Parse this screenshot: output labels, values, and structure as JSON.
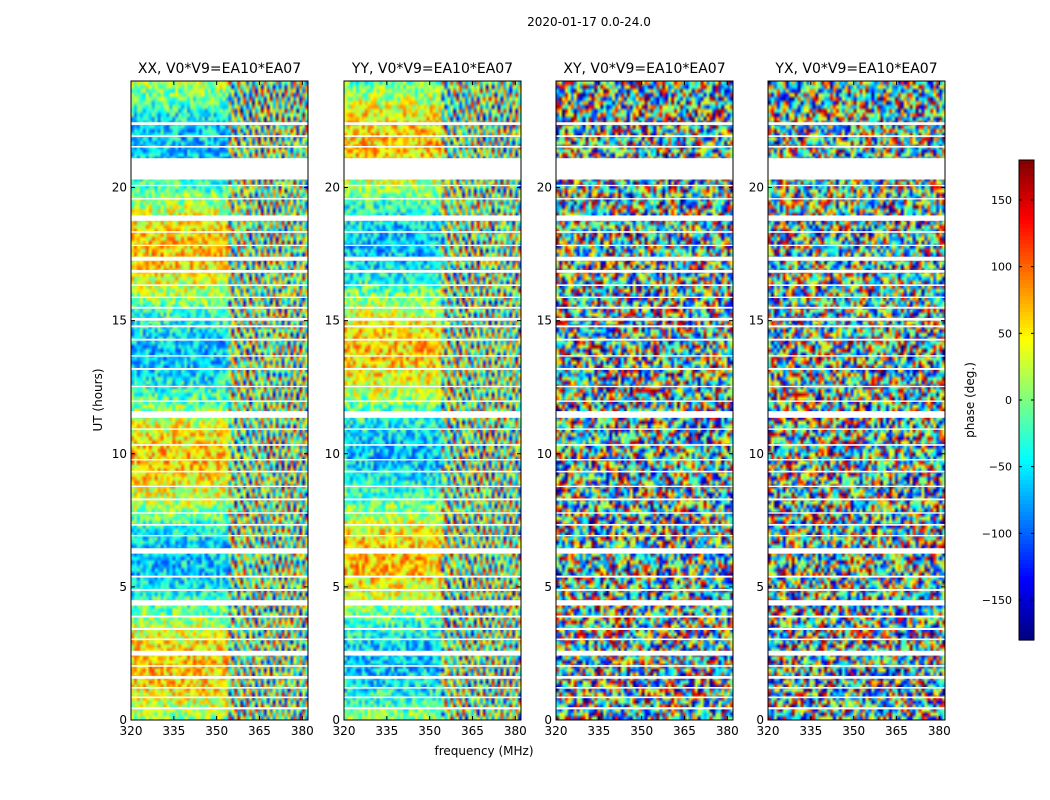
{
  "figure": {
    "suptitle": "2020-01-17 0.0-24.0",
    "xlabel": "frequency (MHz)",
    "ylabel": "UT (hours)"
  },
  "colorbar": {
    "label": "phase (deg.)",
    "range": [
      -180,
      180
    ],
    "ticks": [
      -150,
      -100,
      -50,
      0,
      50,
      100,
      150
    ],
    "tick_labels": [
      "−150",
      "−100",
      "−50",
      "0",
      "50",
      "100",
      "150"
    ],
    "colormap": "jet"
  },
  "chart_data": {
    "type": "heatmap",
    "xlim": [
      320,
      382
    ],
    "ylim": [
      0,
      24
    ],
    "xticks": [
      320,
      335,
      350,
      365,
      380
    ],
    "xtick_labels": [
      "320",
      "335",
      "350",
      "365",
      "380"
    ],
    "yticks": [
      0,
      5,
      10,
      15,
      20
    ],
    "ytick_labels": [
      "0",
      "5",
      "10",
      "15",
      "20"
    ],
    "value_range": [
      -180,
      180
    ],
    "value_label": "phase (deg.)",
    "flagged_bands_hours": [
      [
        0.4,
        0.48
      ],
      [
        0.82,
        0.88
      ],
      [
        1.18,
        1.24
      ],
      [
        1.55,
        1.65
      ],
      [
        2.0,
        2.06
      ],
      [
        2.42,
        2.6
      ],
      [
        3.0,
        3.06
      ],
      [
        3.38,
        3.46
      ],
      [
        3.85,
        3.92
      ],
      [
        4.3,
        4.5
      ],
      [
        4.85,
        4.92
      ],
      [
        5.35,
        5.42
      ],
      [
        6.25,
        6.45
      ],
      [
        6.9,
        6.95
      ],
      [
        7.3,
        7.36
      ],
      [
        7.75,
        7.8
      ],
      [
        8.25,
        8.32
      ],
      [
        8.75,
        8.8
      ],
      [
        9.3,
        9.36
      ],
      [
        9.75,
        9.8
      ],
      [
        10.3,
        10.36
      ],
      [
        10.9,
        10.95
      ],
      [
        11.35,
        11.6
      ],
      [
        11.95,
        12.0
      ],
      [
        12.5,
        12.55
      ],
      [
        13.15,
        13.22
      ],
      [
        13.65,
        13.7
      ],
      [
        14.25,
        14.32
      ],
      [
        14.75,
        14.82
      ],
      [
        15.0,
        15.1
      ],
      [
        15.45,
        15.52
      ],
      [
        15.85,
        15.9
      ],
      [
        16.3,
        16.36
      ],
      [
        16.8,
        16.9
      ],
      [
        17.25,
        17.4
      ],
      [
        17.8,
        17.85
      ],
      [
        18.3,
        18.36
      ],
      [
        18.75,
        18.95
      ],
      [
        19.55,
        19.6
      ],
      [
        20.05,
        20.1
      ],
      [
        20.3,
        21.1
      ],
      [
        21.5,
        21.56
      ],
      [
        21.9,
        21.96
      ],
      [
        22.35,
        22.45
      ]
    ],
    "panels": [
      {
        "title": "XX, V0*V9=EA10*EA07",
        "correlation": "XX",
        "baseline": "V0*V9=EA10*EA07"
      },
      {
        "title": "YY, V0*V9=EA10*EA07",
        "correlation": "YY",
        "baseline": "V0*V9=EA10*EA07"
      },
      {
        "title": "XY, V0*V9=EA10*EA07",
        "correlation": "XY",
        "baseline": "V0*V9=EA10*EA07"
      },
      {
        "title": "YX, V0*V9=EA10*EA07",
        "correlation": "YX",
        "baseline": "V0*V9=EA10*EA07"
      }
    ]
  }
}
